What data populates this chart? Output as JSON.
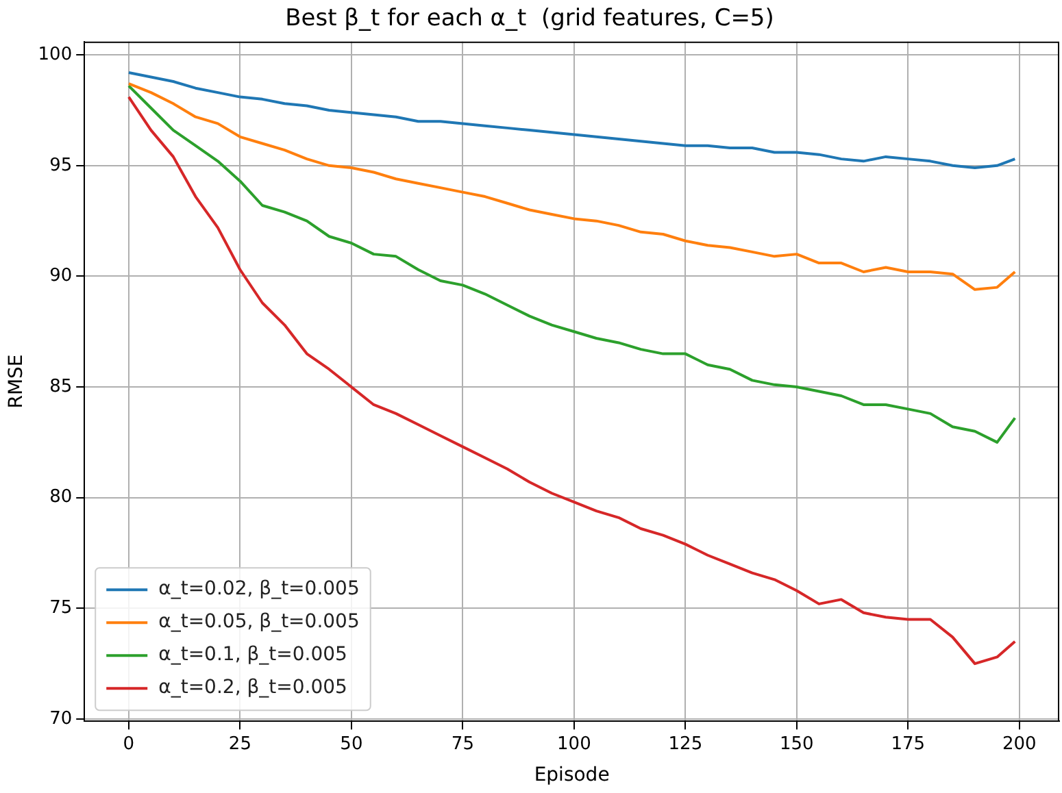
{
  "chart_data": {
    "type": "line",
    "title": "Best β_t for each α_t  (grid features, C=5)",
    "xlabel": "Episode",
    "ylabel": "RMSE",
    "x": [
      0,
      5,
      10,
      15,
      20,
      25,
      30,
      35,
      40,
      45,
      50,
      55,
      60,
      65,
      70,
      75,
      80,
      85,
      90,
      95,
      100,
      105,
      110,
      115,
      120,
      125,
      130,
      135,
      140,
      145,
      150,
      155,
      160,
      165,
      170,
      175,
      180,
      185,
      190,
      195,
      199
    ],
    "series": [
      {
        "name": "α_t=0.02, β_t=0.005",
        "color": "#1f77b4",
        "values": [
          99.2,
          99.0,
          98.8,
          98.5,
          98.3,
          98.1,
          98.0,
          97.8,
          97.7,
          97.5,
          97.4,
          97.3,
          97.2,
          97.0,
          97.0,
          96.9,
          96.8,
          96.7,
          96.6,
          96.5,
          96.4,
          96.3,
          96.2,
          96.1,
          96.0,
          95.9,
          95.9,
          95.8,
          95.8,
          95.6,
          95.6,
          95.5,
          95.3,
          95.2,
          95.4,
          95.3,
          95.2,
          95.0,
          94.9,
          95.0,
          95.3
        ]
      },
      {
        "name": "α_t=0.05, β_t=0.005",
        "color": "#ff7f0e",
        "values": [
          98.7,
          98.3,
          97.8,
          97.2,
          96.9,
          96.3,
          96.0,
          95.7,
          95.3,
          95.0,
          94.9,
          94.7,
          94.4,
          94.2,
          94.0,
          93.8,
          93.6,
          93.3,
          93.0,
          92.8,
          92.6,
          92.5,
          92.3,
          92.0,
          91.9,
          91.6,
          91.4,
          91.3,
          91.1,
          90.9,
          91.0,
          90.6,
          90.6,
          90.2,
          90.4,
          90.2,
          90.2,
          90.1,
          89.4,
          89.5,
          90.2
        ]
      },
      {
        "name": "α_t=0.1, β_t=0.005",
        "color": "#2ca02c",
        "values": [
          98.6,
          97.6,
          96.6,
          95.9,
          95.2,
          94.3,
          93.2,
          92.9,
          92.5,
          91.8,
          91.5,
          91.0,
          90.9,
          90.3,
          89.8,
          89.6,
          89.2,
          88.7,
          88.2,
          87.8,
          87.5,
          87.2,
          87.0,
          86.7,
          86.5,
          86.5,
          86.0,
          85.8,
          85.3,
          85.1,
          85.0,
          84.8,
          84.6,
          84.2,
          84.2,
          84.0,
          83.8,
          83.2,
          83.0,
          82.5,
          83.6
        ]
      },
      {
        "name": "α_t=0.2, β_t=0.005",
        "color": "#d62728",
        "values": [
          98.1,
          96.6,
          95.4,
          93.6,
          92.2,
          90.3,
          88.8,
          87.8,
          86.5,
          85.8,
          85.0,
          84.2,
          83.8,
          83.3,
          82.8,
          82.3,
          81.8,
          81.3,
          80.7,
          80.2,
          79.8,
          79.4,
          79.1,
          78.6,
          78.3,
          77.9,
          77.4,
          77.0,
          76.6,
          76.3,
          75.8,
          75.2,
          75.4,
          74.8,
          74.6,
          74.5,
          74.5,
          73.7,
          72.5,
          72.8,
          73.5
        ]
      }
    ],
    "xlim": [
      -9.95,
      208.95
    ],
    "xticks": [
      0,
      25,
      50,
      75,
      100,
      125,
      150,
      175,
      200
    ],
    "ylim": [
      69.9,
      100.6
    ],
    "yticks": [
      70,
      75,
      80,
      85,
      90,
      95,
      100
    ],
    "grid": true,
    "legend": "bottom left",
    "marker": "none",
    "line_style": "solid"
  }
}
